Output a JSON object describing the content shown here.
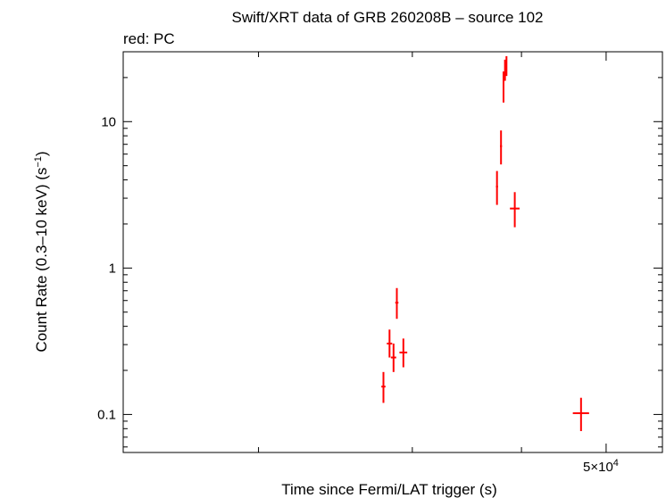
{
  "chart_data": {
    "type": "scatter",
    "title": "Swift/XRT data of GRB 260208B – source 102",
    "subtitle": "red: PC",
    "xlabel": "Time since Fermi/LAT trigger (s)",
    "ylabel_main": "Count Rate (0.3–10 keV) (s",
    "ylabel_sup": "−1",
    "ylabel_close": ")",
    "x_scale": "log",
    "y_scale": "log",
    "xlim": [
      14000,
      58000
    ],
    "ylim": [
      0.055,
      30
    ],
    "x_tick_label": {
      "value": 50000,
      "mantissa": "5×10",
      "exponent": "4"
    },
    "y_tick_labels": [
      {
        "value": 0.1,
        "label": "0.1"
      },
      {
        "value": 1,
        "label": "1"
      },
      {
        "value": 10,
        "label": "10"
      }
    ],
    "series_color": "#ff0000",
    "points": [
      {
        "x": 27800,
        "xerr": [
          150,
          150
        ],
        "y": 0.155,
        "yerr": [
          0.035,
          0.04
        ]
      },
      {
        "x": 28250,
        "xerr": [
          200,
          200
        ],
        "y": 0.305,
        "yerr": [
          0.06,
          0.075
        ]
      },
      {
        "x": 28550,
        "xerr": [
          200,
          200
        ],
        "y": 0.245,
        "yerr": [
          0.05,
          0.06
        ]
      },
      {
        "x": 28800,
        "xerr": [
          120,
          120
        ],
        "y": 0.58,
        "yerr": [
          0.13,
          0.15
        ]
      },
      {
        "x": 29300,
        "xerr": [
          300,
          300
        ],
        "y": 0.265,
        "yerr": [
          0.055,
          0.065
        ]
      },
      {
        "x": 37500,
        "xerr": [
          100,
          100
        ],
        "y": 3.6,
        "yerr": [
          0.9,
          1.0
        ]
      },
      {
        "x": 37900,
        "xerr": [
          100,
          100
        ],
        "y": 6.8,
        "yerr": [
          1.7,
          1.9
        ]
      },
      {
        "x": 38150,
        "xerr": [
          60,
          60
        ],
        "y": 17.5,
        "yerr": [
          4.0,
          4.5
        ]
      },
      {
        "x": 38300,
        "xerr": [
          50,
          50
        ],
        "y": 22.5,
        "yerr": [
          3.5,
          4.0
        ]
      },
      {
        "x": 38450,
        "xerr": [
          40,
          40
        ],
        "y": 24.0,
        "yerr": [
          3.5,
          4.0
        ]
      },
      {
        "x": 39300,
        "xerr": [
          500,
          500
        ],
        "y": 2.55,
        "yerr": [
          0.65,
          0.75
        ]
      },
      {
        "x": 46800,
        "xerr": [
          1000,
          1000
        ],
        "y": 0.102,
        "yerr": [
          0.025,
          0.028
        ]
      }
    ]
  }
}
